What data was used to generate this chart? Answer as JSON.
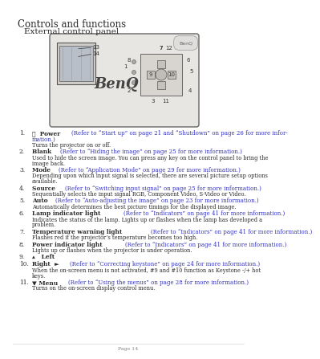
{
  "title": "Controls and functions",
  "subtitle": "External control panel",
  "bg_color": "#ffffff",
  "text_color": "#2a2a2a",
  "link_color": "#3333bb",
  "items": [
    {
      "num": "1.",
      "bold": "ⓘ  Power ",
      "ref": "(Refer to “Start up” on page 21 and “Shutdown” on page 26 for more infor-\nmation.)",
      "desc": "Turns the projector on or off."
    },
    {
      "num": "2.",
      "bold": "Blank ",
      "ref": "(Refer to “Hiding the image” on page 25 for more information.)",
      "desc": "Used to hide the screen image. You can press any key on the control panel to bring the\nimage back."
    },
    {
      "num": "3.",
      "bold": "Mode ",
      "ref": "(Refer to “Application Mode” on page 29 for more information.)",
      "desc": "Depending upon which input signal is selected, there are several picture setup options\navailable."
    },
    {
      "num": "4.",
      "bold": "Source ",
      "ref": "(Refer to “Switching input signal” on page 25 for more information.)",
      "desc": "Sequentially selects the input signal RGB, Component Video, S-Video or Video."
    },
    {
      "num": "5.",
      "bold": "Auto ",
      "ref": "(Refer to “Auto-adjusting the image” on page 23 for more information.)",
      "desc": "Automatically determines the best picture timings for the displayed image."
    },
    {
      "num": "6.",
      "bold": "Lamp indicator light ",
      "ref": "(Refer to “Indicators” on page 41 for more information.)",
      "desc": "Indicates the status of the lamp. Lights up or flashes when the lamp has developed a\nproblem."
    },
    {
      "num": "7.",
      "bold": "Temperature warning light ",
      "ref": "(Refer to “Indicators” on page 41 for more information.)",
      "desc": "Flashes red if the projector’s temperature becomes too high."
    },
    {
      "num": "8.",
      "bold": "Power indicator light ",
      "ref": "(Refer to “Indicators” on page 41 for more information.)",
      "desc": "Lights up or flashes when the projector is under operation."
    },
    {
      "num": "9.",
      "bold": "▴   Left",
      "ref": "",
      "desc": ""
    },
    {
      "num": "10.",
      "bold": "Right  ► ",
      "ref": "(Refer to “Correcting keystone” on page 24 for more information.)",
      "desc": "When the on-screen menu is not activated, #9 and #10 function as Keystone -/+ hot\nkeys."
    },
    {
      "num": "11.",
      "bold": "▼ Menu ",
      "ref": "(Refer to “Using the menus” on page 28 for more information.)",
      "desc": "Turns on the on-screen display control menu."
    }
  ],
  "footer_text": "Page 14"
}
